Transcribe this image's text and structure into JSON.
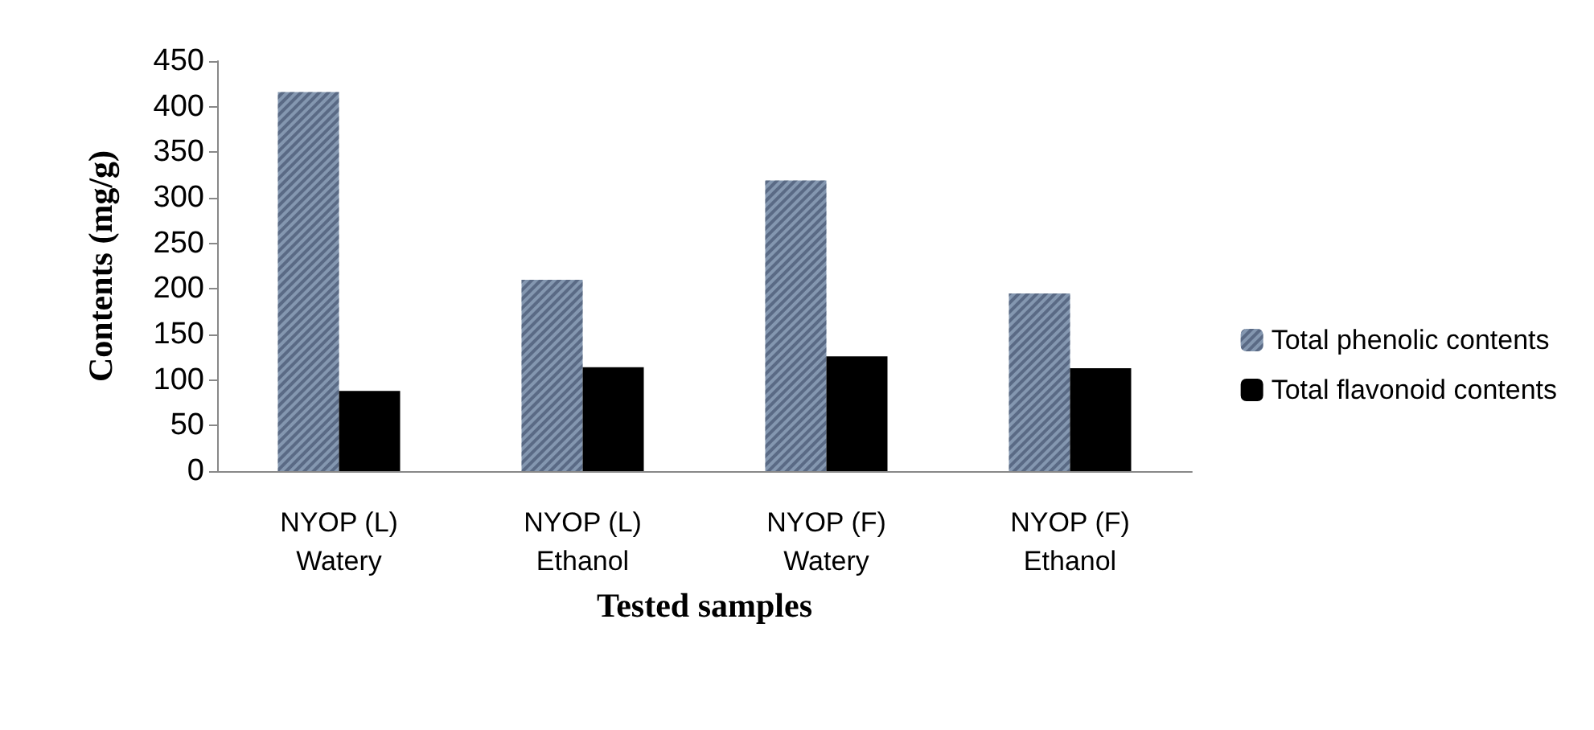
{
  "chart_data": {
    "type": "bar",
    "xlabel": "Tested samples",
    "ylabel": "Contents (mg/g)",
    "categories": [
      "NYOP (L)\nWatery",
      "NYOP (L)\nEthanol",
      "NYOP (F)\nWatery",
      "NYOP (F)\nEthanol"
    ],
    "series": [
      {
        "name": "Total phenolic contents",
        "color": "#8497b0",
        "values": [
          416,
          210,
          319,
          195
        ]
      },
      {
        "name": "Total flavonoid contents",
        "color": "#000000",
        "values": [
          88,
          114,
          126,
          113
        ]
      }
    ],
    "ylim": [
      0,
      450
    ],
    "yticks": [
      0,
      50,
      100,
      150,
      200,
      250,
      300,
      350,
      400,
      450
    ],
    "grid": false,
    "legend": "right"
  }
}
